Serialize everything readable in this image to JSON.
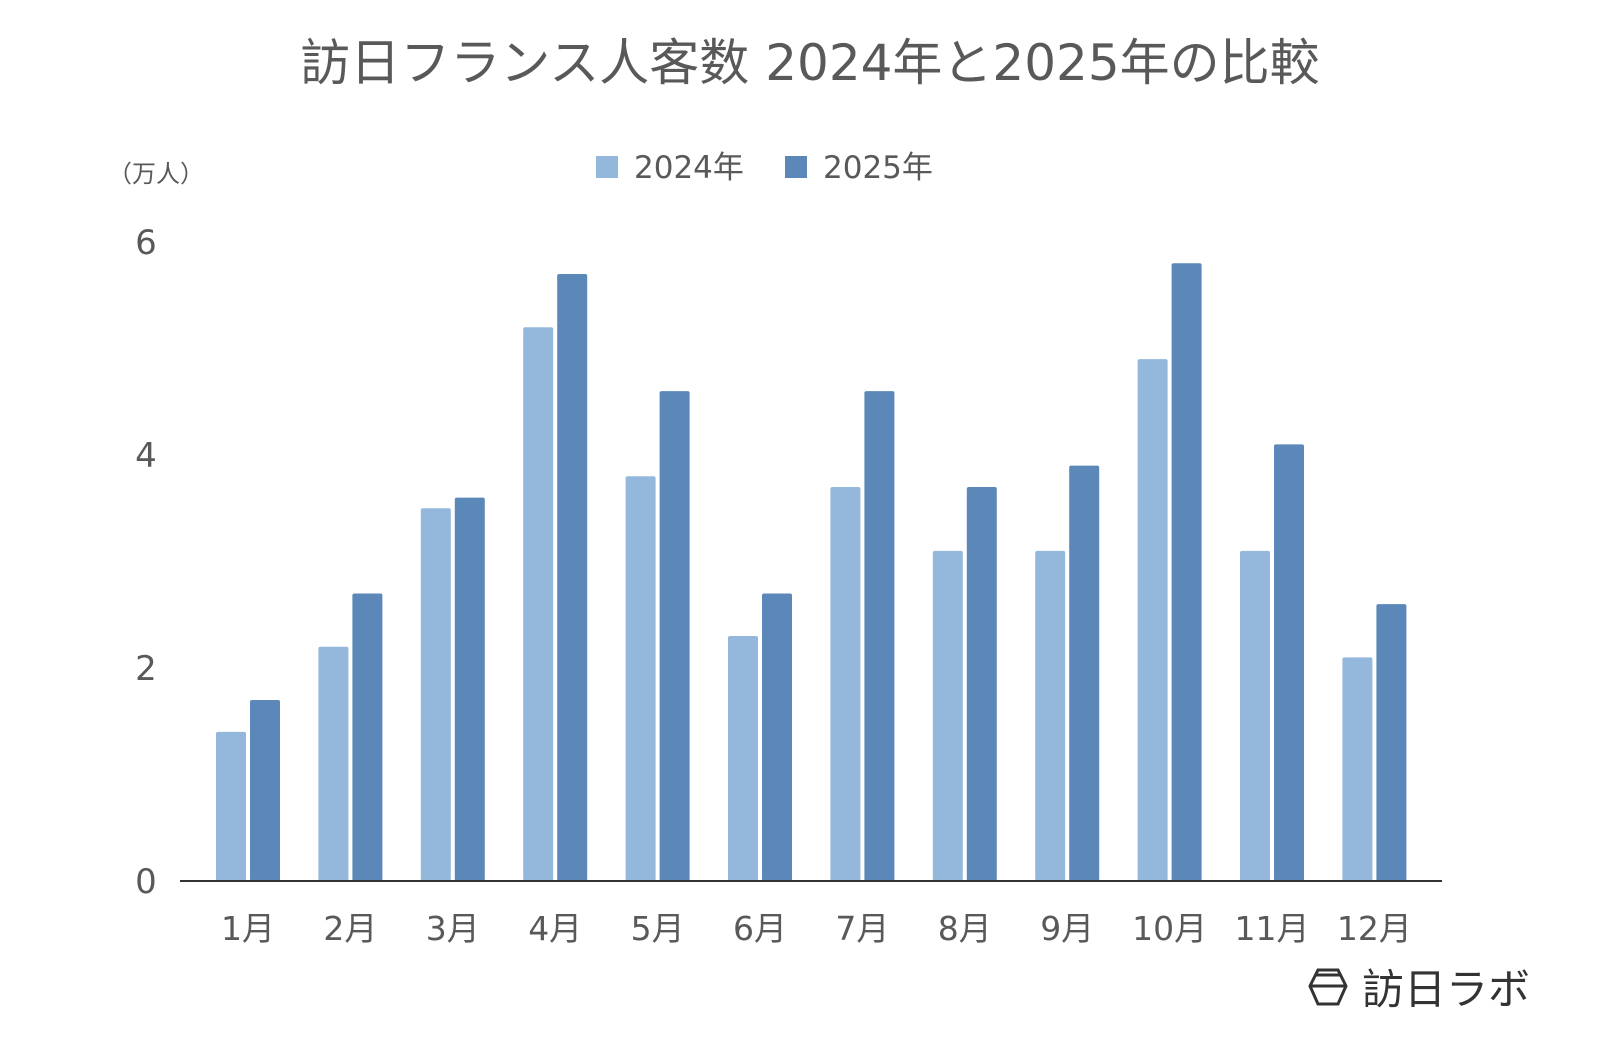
{
  "chart_data": {
    "type": "bar",
    "title": "訪日フランス人客数 2024年と2025年の比較",
    "ylabel": "（万人）",
    "xlabel": "",
    "ylim": [
      0,
      6
    ],
    "yticks": [
      "0",
      "2",
      "4",
      "6"
    ],
    "grid": false,
    "legend_position": "top-center",
    "categories": [
      "1月",
      "2月",
      "3月",
      "4月",
      "5月",
      "6月",
      "7月",
      "8月",
      "9月",
      "10月",
      "11月",
      "12月"
    ],
    "series": [
      {
        "name": "2024年",
        "color": "#93b8db",
        "values": [
          1.4,
          2.2,
          3.5,
          5.2,
          3.8,
          2.3,
          3.7,
          3.1,
          3.1,
          4.9,
          3.1,
          2.1
        ]
      },
      {
        "name": "2025年",
        "color": "#5b87b9",
        "values": [
          1.7,
          2.7,
          3.6,
          5.7,
          4.6,
          2.7,
          4.6,
          3.7,
          3.9,
          5.8,
          4.1,
          2.6
        ]
      }
    ]
  },
  "logo": {
    "text": "訪日ラボ"
  }
}
